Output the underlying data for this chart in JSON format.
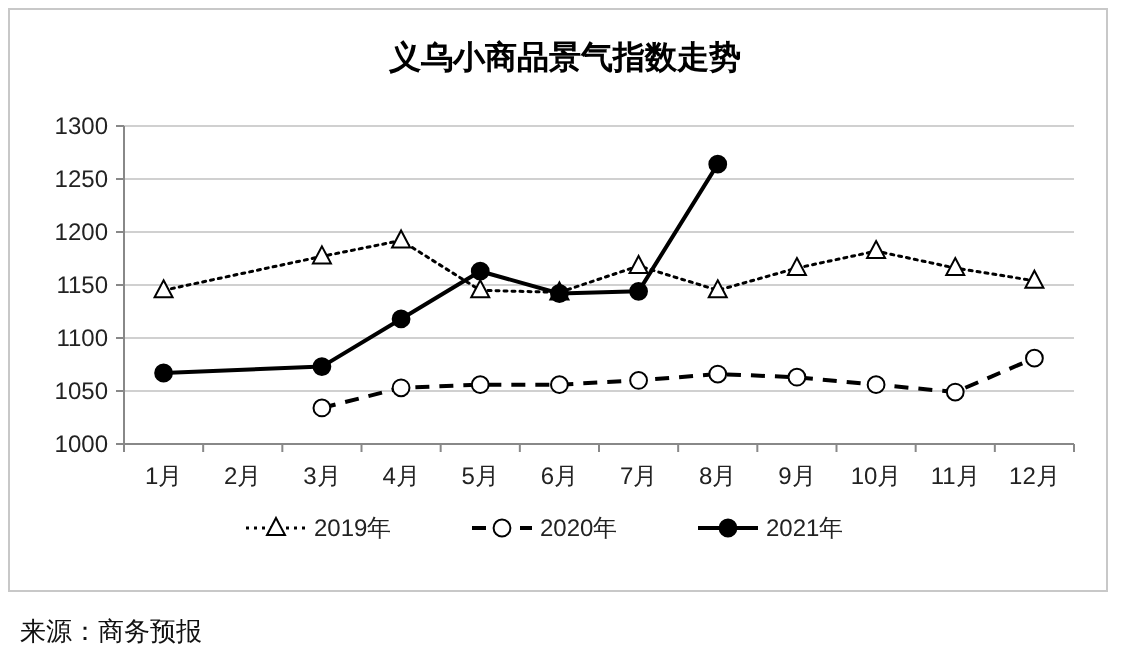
{
  "chart_data": {
    "type": "line",
    "title": "义乌小商品景气指数走势",
    "categories": [
      "1月",
      "2月",
      "3月",
      "4月",
      "5月",
      "6月",
      "7月",
      "8月",
      "9月",
      "10月",
      "11月",
      "12月"
    ],
    "series": [
      {
        "name": "2019年",
        "color": "#000000",
        "marker": "triangle",
        "line_style": "dotted",
        "values": [
          1145,
          null,
          1177,
          1192,
          1145,
          1143,
          1168,
          1145,
          1166,
          1182,
          1166,
          1154
        ]
      },
      {
        "name": "2020年",
        "color": "#000000",
        "marker": "circle",
        "line_style": "dashed",
        "values": [
          null,
          null,
          1034,
          1053,
          1056,
          1056,
          1060,
          1066,
          1063,
          1056,
          1049,
          1081
        ]
      },
      {
        "name": "2021年",
        "color": "#000000",
        "marker": "circle",
        "line_style": "solid",
        "values": [
          1067,
          null,
          1073,
          1118,
          1163,
          1142,
          1144,
          1264,
          null,
          null,
          null,
          null
        ]
      }
    ],
    "ylim": [
      1000,
      1300
    ],
    "yticks": [
      1000,
      1050,
      1100,
      1150,
      1200,
      1250,
      1300
    ],
    "grid": "y",
    "legend": "bottom",
    "annotations": [
      "来源：商务预报"
    ]
  }
}
